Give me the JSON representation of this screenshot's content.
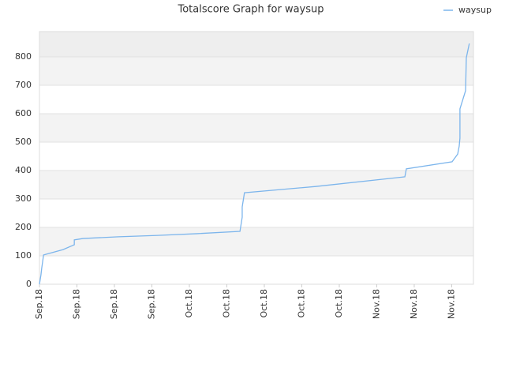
{
  "chart_data": {
    "type": "line",
    "title": "Totalscore Graph for waysup",
    "series": [
      {
        "name": "waysup",
        "color": "#7cb5ec",
        "x": [
          0,
          0.04,
          0.06,
          0.11,
          0.63,
          0.93,
          0.93,
          1.16,
          2.11,
          3.16,
          4.21,
          5.35,
          5.41,
          5.41,
          5.47,
          7.37,
          9.75,
          9.79,
          11.01,
          11.16,
          11.2,
          11.22,
          11.22,
          11.37,
          11.39,
          11.47
        ],
        "values": [
          0,
          33,
          56,
          103,
          122,
          139,
          156,
          161,
          167,
          172,
          178,
          186,
          236,
          272,
          322,
          344,
          378,
          406,
          431,
          458,
          486,
          514,
          617,
          681,
          797,
          847
        ]
      }
    ],
    "xlim": [
      0,
      11.58
    ],
    "xticks": [
      {
        "value": 0,
        "label": "Sep.18"
      },
      {
        "value": 1,
        "label": "Sep.18"
      },
      {
        "value": 2,
        "label": "Sep.18"
      },
      {
        "value": 3,
        "label": "Sep.18"
      },
      {
        "value": 4,
        "label": "Oct.18"
      },
      {
        "value": 5,
        "label": "Oct.18"
      },
      {
        "value": 6,
        "label": "Oct.18"
      },
      {
        "value": 7,
        "label": "Oct.18"
      },
      {
        "value": 8,
        "label": "Oct.18"
      },
      {
        "value": 9,
        "label": "Nov.18"
      },
      {
        "value": 10,
        "label": "Nov.18"
      },
      {
        "value": 11,
        "label": "Nov.18"
      }
    ],
    "ylim": [
      0,
      889
    ],
    "yticks": [
      0,
      100,
      200,
      300,
      400,
      500,
      600,
      700,
      800
    ],
    "grid": true,
    "legend": "top-right"
  }
}
